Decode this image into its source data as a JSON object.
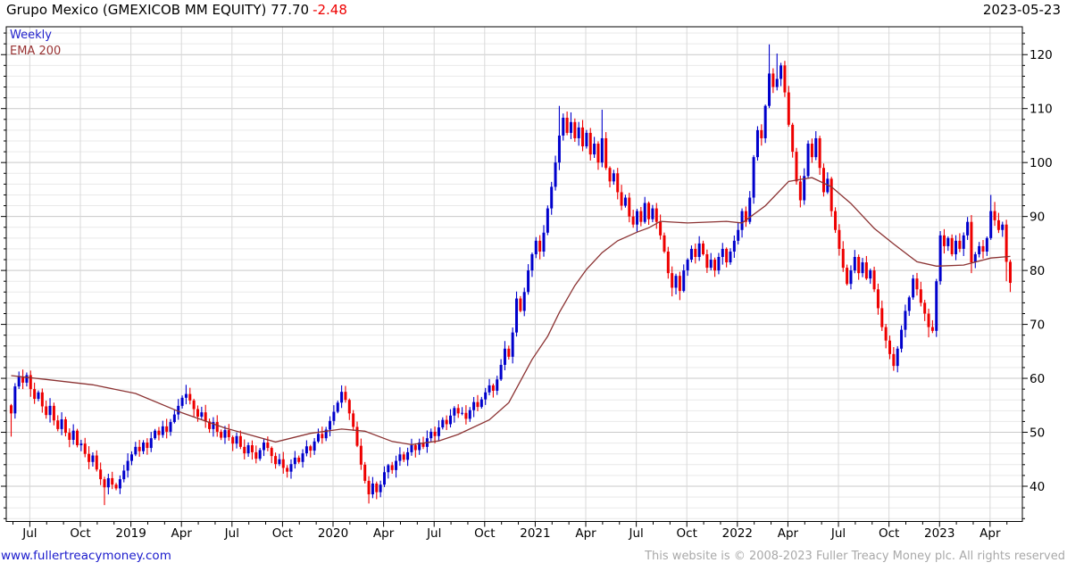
{
  "header": {
    "title": "Grupo Mexico (GMEXICOB MM EQUITY) 77.70",
    "change": "-2.48",
    "date": "2023-05-23"
  },
  "legend": {
    "series": "Weekly",
    "overlay": "EMA 200"
  },
  "footer": {
    "link": "www.fullertreacymoney.com",
    "copyright": "This website is © 2008-2023 Fuller Treacy Money plc. All rights reserved"
  },
  "colors": {
    "up": "#0000cc",
    "down": "#ee0000",
    "ema": "#8b3232",
    "grid_major": "#c9c9c9",
    "grid_minor": "#e9e9e9",
    "grid_vertical": "#d9d9d9",
    "axis": "#000000",
    "change": "#ee0000",
    "legend_weekly": "#2222cc",
    "legend_ema": "#993333",
    "link": "#1a1acc",
    "copyright": "#a9a9a9"
  },
  "chart_data": {
    "type": "candlestick",
    "periodicity": "Weekly",
    "overlay": "EMA 200",
    "title": "Grupo Mexico (GMEXICOB MM EQUITY)",
    "last_close": 77.7,
    "change": -2.48,
    "date": "2023-05-23",
    "y_ticks": [
      40,
      50,
      60,
      70,
      80,
      90,
      100,
      110,
      120
    ],
    "y_minor_step": 2,
    "ylim": [
      33.5,
      125.1
    ],
    "y_axis_side": "right",
    "grid": true,
    "x_labels": [
      "Jul",
      "Oct",
      "2019",
      "Apr",
      "Jul",
      "Oct",
      "2020",
      "Apr",
      "Jul",
      "Oct",
      "2021",
      "Apr",
      "Jul",
      "Oct",
      "2022",
      "Apr",
      "Jul",
      "Oct",
      "2023",
      "Apr"
    ],
    "x_label_weeks": [
      4.8,
      17.8,
      30.8,
      43.8,
      56.8,
      69.8,
      82.8,
      95.8,
      108.8,
      121.8,
      134.8,
      147.8,
      160.8,
      173.8,
      186.8,
      199.8,
      212.8,
      225.8,
      238.8,
      251.8
    ],
    "first_open": 55.0,
    "weekly_closes": [
      53.5,
      58.5,
      60.3,
      59.2,
      60.6,
      58.0,
      56.2,
      57.4,
      54.8,
      53.2,
      54.9,
      52.2,
      50.6,
      52.4,
      49.9,
      48.6,
      50.3,
      47.6,
      47.9,
      46.0,
      44.5,
      45.7,
      43.1,
      41.3,
      39.8,
      41.5,
      40.3,
      39.6,
      41.3,
      42.9,
      44.7,
      45.9,
      47.3,
      46.5,
      48.1,
      47.1,
      48.9,
      50.3,
      49.5,
      51.1,
      50.1,
      51.9,
      53.3,
      54.9,
      56.4,
      57.1,
      55.9,
      54.3,
      52.9,
      53.7,
      52.0,
      50.6,
      51.9,
      50.1,
      49.0,
      50.4,
      49.1,
      47.9,
      49.3,
      47.3,
      46.1,
      47.6,
      46.3,
      45.1,
      46.7,
      48.1,
      47.1,
      45.6,
      44.1,
      45.0,
      43.4,
      42.7,
      44.1,
      45.3,
      44.5,
      46.1,
      47.4,
      46.6,
      48.3,
      49.7,
      48.9,
      50.5,
      52.1,
      53.8,
      55.5,
      57.5,
      56.0,
      53.5,
      51.0,
      47.5,
      44.0,
      41.0,
      38.5,
      40.5,
      38.9,
      40.3,
      42.6,
      43.9,
      43.0,
      44.7,
      45.9,
      44.9,
      46.3,
      47.6,
      46.7,
      48.1,
      47.3,
      48.9,
      50.1,
      49.3,
      50.9,
      52.3,
      51.5,
      53.1,
      54.5,
      53.5,
      53.6,
      52.5,
      54.1,
      55.6,
      54.7,
      56.1,
      57.4,
      58.7,
      57.7,
      59.8,
      62.5,
      65.5,
      64.0,
      68.5,
      74.8,
      72.5,
      76.0,
      80.0,
      83.0,
      85.5,
      83.5,
      87.0,
      91.5,
      95.5,
      100.0,
      105.0,
      108.3,
      105.5,
      107.5,
      104.5,
      106.5,
      103.0,
      105.5,
      101.5,
      103.5,
      100.0,
      104.5,
      99.0,
      96.5,
      98.0,
      94.5,
      92.0,
      93.5,
      90.0,
      88.5,
      91.0,
      89.0,
      92.5,
      89.5,
      91.5,
      89.0,
      86.5,
      83.5,
      79.5,
      76.8,
      79.0,
      76.2,
      80.0,
      82.0,
      84.0,
      82.5,
      85.0,
      83.0,
      80.5,
      82.0,
      80.0,
      82.5,
      84.0,
      81.5,
      83.5,
      85.5,
      87.5,
      91.0,
      89.0,
      93.5,
      101.0,
      106.0,
      104.5,
      110.5,
      116.5,
      114.0,
      115.5,
      118.0,
      113.0,
      107.0,
      102.0,
      96.5,
      93.0,
      97.5,
      103.5,
      101.0,
      104.5,
      99.0,
      94.5,
      97.0,
      91.0,
      87.5,
      84.0,
      80.5,
      77.5,
      80.0,
      82.5,
      79.5,
      81.5,
      78.5,
      80.0,
      76.5,
      73.0,
      69.5,
      67.0,
      64.5,
      62.3,
      65.5,
      69.0,
      72.5,
      75.0,
      78.5,
      76.5,
      74.0,
      72.0,
      69.5,
      68.8,
      78.0,
      86.5,
      84.5,
      86.0,
      83.0,
      85.5,
      84.0,
      86.5,
      89.0,
      81.5,
      83.0,
      84.5,
      83.5,
      86.0,
      91.0,
      89.3,
      87.5,
      88.5,
      81.6,
      77.7
    ],
    "wick_overrides": {
      "0": [
        null,
        49.2
      ],
      "24": [
        null,
        36.5
      ],
      "45": [
        58.8,
        null
      ],
      "71": [
        null,
        41.6
      ],
      "85": [
        58.7,
        null
      ],
      "92": [
        null,
        36.8
      ],
      "94": [
        null,
        37.6
      ],
      "141": [
        110.5,
        null
      ],
      "144": [
        109.3,
        null
      ],
      "152": [
        109.8,
        null
      ],
      "170": [
        null,
        75.2
      ],
      "172": [
        null,
        74.5
      ],
      "195": [
        121.9,
        null
      ],
      "197": [
        120.2,
        null
      ],
      "227": [
        null,
        61.4
      ],
      "236": [
        null,
        67.6
      ],
      "247": [
        null,
        79.5
      ],
      "252": [
        94.0,
        null
      ],
      "253": [
        92.7,
        null
      ],
      "256": [
        null,
        78.0
      ],
      "257": [
        82.0,
        76.0
      ]
    },
    "ema200_anchors": [
      [
        0,
        60.5
      ],
      [
        9,
        59.8
      ],
      [
        21,
        58.8
      ],
      [
        32,
        57.2
      ],
      [
        44,
        53.6
      ],
      [
        55,
        50.8
      ],
      [
        68,
        48.2
      ],
      [
        77,
        49.8
      ],
      [
        85,
        50.6
      ],
      [
        91,
        50.2
      ],
      [
        98,
        48.3
      ],
      [
        103,
        47.7
      ],
      [
        110,
        48.4
      ],
      [
        115,
        49.6
      ],
      [
        123,
        52.3
      ],
      [
        128,
        55.5
      ],
      [
        134,
        63.5
      ],
      [
        138,
        67.8
      ],
      [
        141,
        72.2
      ],
      [
        145,
        77.2
      ],
      [
        148,
        80.2
      ],
      [
        152,
        83.3
      ],
      [
        156,
        85.5
      ],
      [
        161,
        87.1
      ],
      [
        164,
        87.9
      ],
      [
        167,
        89.1
      ],
      [
        174,
        88.8
      ],
      [
        184,
        89.1
      ],
      [
        188,
        88.8
      ],
      [
        194,
        92.0
      ],
      [
        200,
        96.5
      ],
      [
        206,
        97.2
      ],
      [
        211,
        95.5
      ],
      [
        216,
        92.4
      ],
      [
        222,
        87.8
      ],
      [
        227,
        84.9
      ],
      [
        233,
        81.6
      ],
      [
        238,
        80.8
      ],
      [
        245,
        81.0
      ],
      [
        252,
        82.3
      ],
      [
        257,
        82.6
      ]
    ]
  }
}
